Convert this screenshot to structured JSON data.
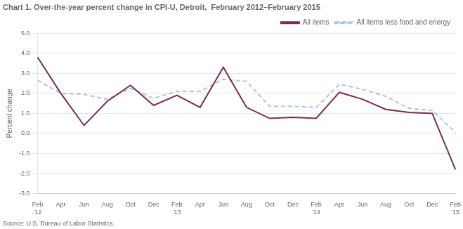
{
  "chart_data": {
    "type": "line",
    "title": "Chart 1. Over-the-year percent change in CPI-U, Detroit,  February 2012–February 2015",
    "y_label": "Percent change",
    "source": "Source: U.S. Bureau of Labor Statistics.",
    "categories": [
      "Feb\n'12",
      "Apr",
      "Jun",
      "Aug",
      "Oct",
      "Dec",
      "Feb\n'13",
      "Apr",
      "Jun",
      "Aug",
      "Oct",
      "Dec",
      "Feb\n'14",
      "Apr",
      "Jun",
      "Aug",
      "Oct",
      "Dec",
      "Feb\n'15"
    ],
    "series": [
      {
        "name": "All items",
        "color": "#7b2d52",
        "line_style": "solid",
        "values": [
          3.8,
          2.0,
          0.4,
          1.6,
          2.4,
          1.4,
          1.9,
          1.3,
          3.3,
          1.3,
          0.75,
          0.8,
          0.75,
          2.05,
          1.7,
          1.2,
          1.05,
          1.0,
          -1.8
        ]
      },
      {
        "name": "All items less food and energy",
        "color": "#a8c8e8",
        "line_style": "dashed",
        "values": [
          2.65,
          2.0,
          1.95,
          1.7,
          2.25,
          1.75,
          2.1,
          2.1,
          2.7,
          2.6,
          1.35,
          1.35,
          1.3,
          2.45,
          2.2,
          1.85,
          1.25,
          1.15,
          0.05
        ]
      }
    ],
    "ylim": [
      -3.0,
      5.0
    ],
    "yticks": [
      {
        "value": -3.0,
        "label": "-3.0"
      },
      {
        "value": -2.0,
        "label": "-2.0"
      },
      {
        "value": -1.0,
        "label": "-1.0"
      },
      {
        "value": 0.0,
        "label": "0.0"
      },
      {
        "value": 1.0,
        "label": "1.0"
      },
      {
        "value": 2.0,
        "label": "2.0"
      },
      {
        "value": 3.0,
        "label": "3.0"
      },
      {
        "value": 4.0,
        "label": "4.0"
      },
      {
        "value": 5.0,
        "label": "5.0"
      }
    ],
    "grid": "y",
    "legend": "upper right"
  }
}
